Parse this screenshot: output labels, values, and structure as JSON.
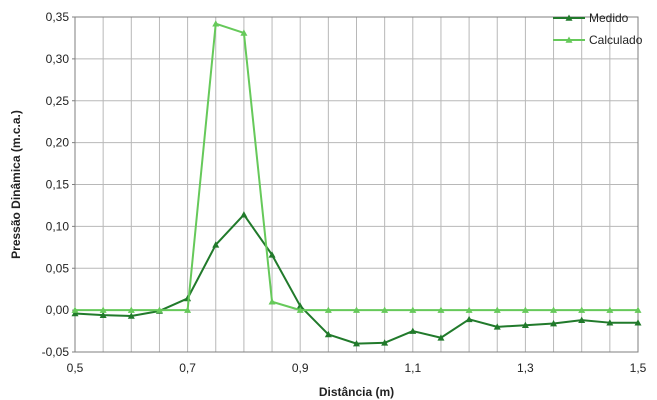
{
  "chart_data": {
    "type": "line",
    "xlabel": "Distância  (m)",
    "ylabel": "Pressão Dinâmica  (m.c.a.)",
    "xlim": [
      0.5,
      1.5
    ],
    "ylim": [
      -0.05,
      0.35
    ],
    "x_major_ticks": [
      "0,5",
      "0,7",
      "0,9",
      "1,1",
      "1,3",
      "1,5"
    ],
    "x_major_values": [
      0.5,
      0.7,
      0.9,
      1.1,
      1.3,
      1.5
    ],
    "y_ticks": [
      "-0,05",
      "0,00",
      "0,05",
      "0,10",
      "0,15",
      "0,20",
      "0,25",
      "0,30",
      "0,35"
    ],
    "y_tick_values": [
      -0.05,
      0.0,
      0.05,
      0.1,
      0.15,
      0.2,
      0.25,
      0.3,
      0.35
    ],
    "grid": true,
    "legend_position": "top-right",
    "x": [
      0.5,
      0.55,
      0.6,
      0.65,
      0.7,
      0.75,
      0.8,
      0.85,
      0.9,
      0.95,
      1.0,
      1.05,
      1.1,
      1.15,
      1.2,
      1.25,
      1.3,
      1.35,
      1.4,
      1.45,
      1.5
    ],
    "series": [
      {
        "name": "Medido",
        "color": "#217a2b",
        "marker": "triangle",
        "values": [
          -0.004,
          -0.006,
          -0.007,
          -0.001,
          0.014,
          0.078,
          0.114,
          0.066,
          0.005,
          -0.029,
          -0.04,
          -0.039,
          -0.025,
          -0.033,
          -0.011,
          -0.02,
          -0.018,
          -0.016,
          -0.012,
          -0.015,
          -0.015
        ]
      },
      {
        "name": "Calculado",
        "color": "#66c95a",
        "marker": "triangle",
        "values": [
          0.0,
          0.0,
          0.0,
          0.0,
          0.0,
          0.342,
          0.331,
          0.01,
          0.0,
          0.0,
          0.0,
          0.0,
          0.0,
          0.0,
          0.0,
          0.0,
          0.0,
          0.0,
          0.0,
          0.0,
          0.0
        ]
      }
    ]
  }
}
